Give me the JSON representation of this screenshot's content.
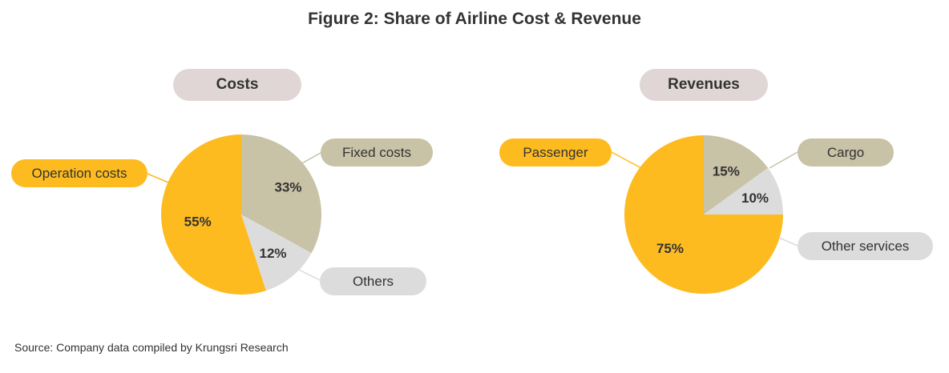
{
  "title": "Figure 2:  Share of Airline Cost & Revenue",
  "source": "Source: Company data compiled by Krungsri Research",
  "colors": {
    "yellow": "#fdbb20",
    "tan": "#c8c2a6",
    "grey": "#dcdcdc",
    "header": "#e0d6d6"
  },
  "chart_data": [
    {
      "type": "pie",
      "title": "Costs",
      "slices": [
        {
          "label": "Fixed costs",
          "value": 33,
          "display": "33%",
          "color": "#c8c2a6"
        },
        {
          "label": "Others",
          "value": 12,
          "display": "12%",
          "color": "#dcdcdc"
        },
        {
          "label": "Operation  costs",
          "value": 55,
          "display": "55%",
          "color": "#fdbb20"
        }
      ]
    },
    {
      "type": "pie",
      "title": "Revenues",
      "slices": [
        {
          "label": "Cargo",
          "value": 15,
          "display": "15%",
          "color": "#c8c2a6"
        },
        {
          "label": "Other services",
          "value": 10,
          "display": "10%",
          "color": "#dcdcdc"
        },
        {
          "label": "Passenger",
          "value": 75,
          "display": "75%",
          "color": "#fdbb20"
        }
      ]
    }
  ]
}
